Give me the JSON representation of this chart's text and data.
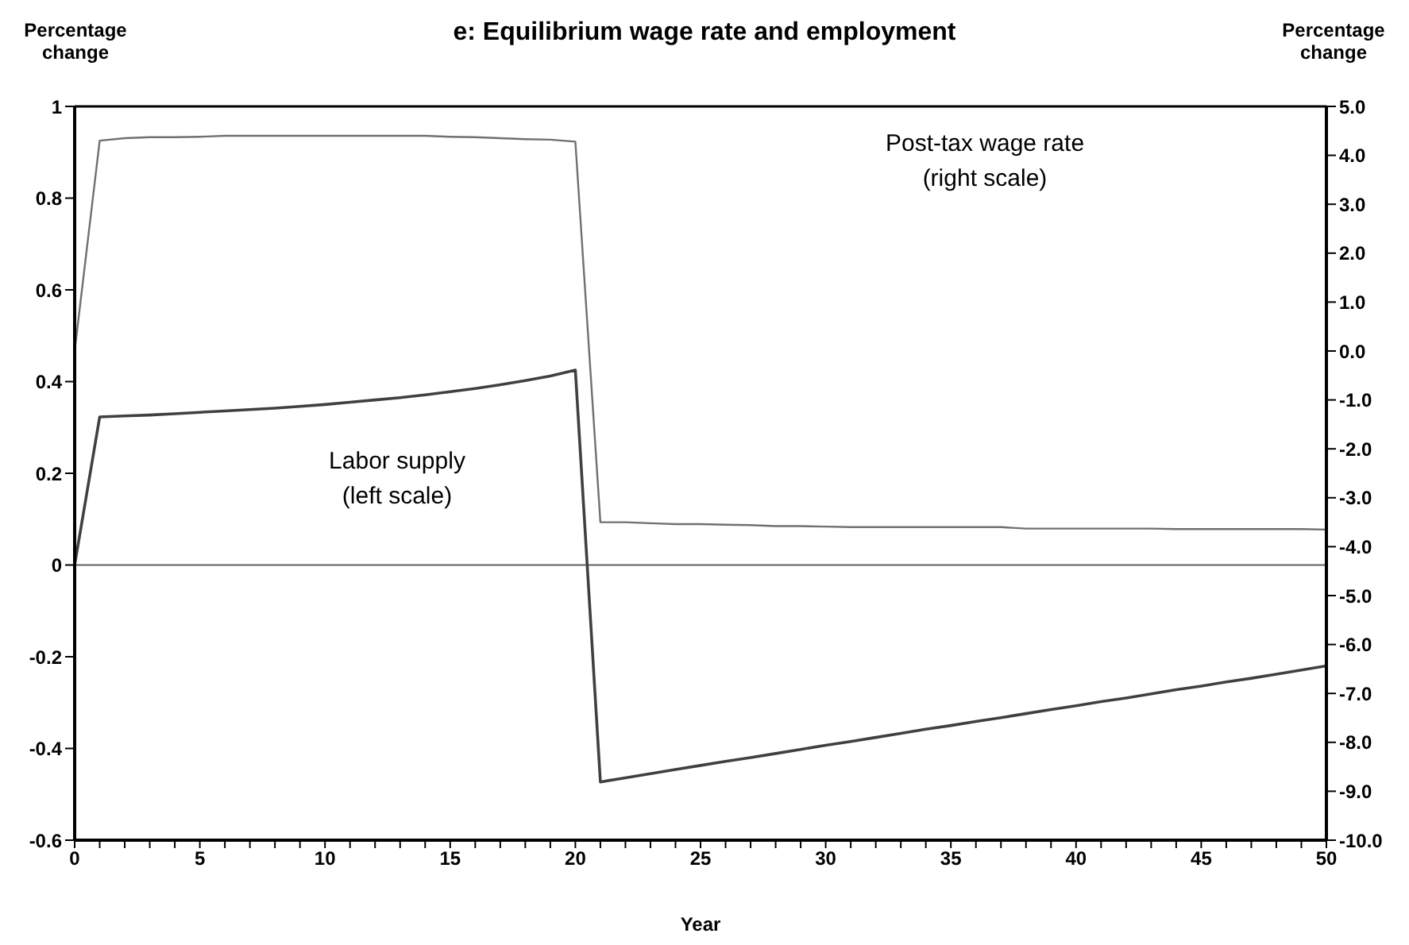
{
  "chart_data": {
    "type": "line",
    "title": "e: Equilibrium wage rate and employment",
    "xlabel": "Year",
    "ylabel": "Percentage change",
    "y2label": "Percentage change",
    "annotations": [
      "Post-tax wage rate\n(right scale)",
      "Labor supply\n(left scale)"
    ],
    "x": [
      0,
      1,
      2,
      3,
      4,
      5,
      6,
      7,
      8,
      9,
      10,
      11,
      12,
      13,
      14,
      15,
      16,
      17,
      18,
      19,
      20,
      21,
      22,
      23,
      24,
      25,
      26,
      27,
      28,
      29,
      30,
      31,
      32,
      33,
      34,
      35,
      36,
      37,
      38,
      39,
      40,
      41,
      42,
      43,
      44,
      45,
      46,
      47,
      48,
      49,
      50
    ],
    "series": [
      {
        "color": "#404040",
        "values": [
          0,
          0.323,
          0.325,
          0.327,
          0.33,
          0.333,
          0.336,
          0.339,
          0.342,
          0.346,
          0.35,
          0.355,
          0.36,
          0.365,
          0.371,
          0.378,
          0.385,
          0.393,
          0.402,
          0.412,
          0.425,
          -0.473,
          -0.464,
          -0.455,
          -0.446,
          -0.437,
          -0.428,
          -0.42,
          -0.411,
          -0.402,
          -0.393,
          -0.385,
          -0.376,
          -0.367,
          -0.358,
          -0.35,
          -0.341,
          -0.333,
          -0.324,
          -0.315,
          -0.307,
          -0.298,
          -0.29,
          -0.281,
          -0.272,
          -0.264,
          -0.255,
          -0.247,
          -0.238,
          -0.229,
          -0.22
        ]
      },
      {
        "color": "#707070",
        "axis": "y2",
        "values": [
          0,
          4.3,
          4.35,
          4.37,
          4.37,
          4.38,
          4.4,
          4.4,
          4.4,
          4.4,
          4.4,
          4.4,
          4.4,
          4.4,
          4.4,
          4.38,
          4.37,
          4.35,
          4.33,
          4.32,
          4.28,
          -3.5,
          -3.5,
          -3.52,
          -3.54,
          -3.54,
          -3.55,
          -3.56,
          -3.58,
          -3.58,
          -3.59,
          -3.6,
          -3.6,
          -3.6,
          -3.6,
          -3.6,
          -3.6,
          -3.6,
          -3.63,
          -3.63,
          -3.63,
          -3.63,
          -3.63,
          -3.63,
          -3.64,
          -3.64,
          -3.64,
          -3.64,
          -3.64,
          -3.64,
          -3.65
        ]
      }
    ],
    "xlim": [
      0,
      50
    ],
    "xticks": [
      0,
      {
        "value": 1,
        "label": null
      },
      {
        "value": 2,
        "label": null
      },
      {
        "value": 3,
        "label": null
      },
      {
        "value": 4,
        "label": null
      },
      5,
      {
        "value": 6,
        "label": null
      },
      {
        "value": 7,
        "label": null
      },
      {
        "value": 8,
        "label": null
      },
      {
        "value": 9,
        "label": null
      },
      10,
      {
        "value": 11,
        "label": null
      },
      {
        "value": 12,
        "label": null
      },
      {
        "value": 13,
        "label": null
      },
      {
        "value": 14,
        "label": null
      },
      15,
      {
        "value": 16,
        "label": null
      },
      {
        "value": 17,
        "label": null
      },
      {
        "value": 18,
        "label": null
      },
      {
        "value": 19,
        "label": null
      },
      20,
      {
        "value": 21,
        "label": null
      },
      {
        "value": 22,
        "label": null
      },
      {
        "value": 23,
        "label": null
      },
      {
        "value": 24,
        "label": null
      },
      25,
      {
        "value": 26,
        "label": null
      },
      {
        "value": 27,
        "label": null
      },
      {
        "value": 28,
        "label": null
      },
      {
        "value": 29,
        "label": null
      },
      30,
      {
        "value": 31,
        "label": null
      },
      {
        "value": 32,
        "label": null
      },
      {
        "value": 33,
        "label": null
      },
      {
        "value": 34,
        "label": null
      },
      35,
      {
        "value": 36,
        "label": null
      },
      {
        "value": 37,
        "label": null
      },
      {
        "value": 38,
        "label": null
      },
      {
        "value": 39,
        "label": null
      },
      40,
      {
        "value": 41,
        "label": null
      },
      {
        "value": 42,
        "label": null
      },
      {
        "value": 43,
        "label": null
      },
      {
        "value": 44,
        "label": null
      },
      45,
      {
        "value": 46,
        "label": null
      },
      {
        "value": 47,
        "label": null
      },
      {
        "value": 48,
        "label": null
      },
      {
        "value": 49,
        "label": null
      },
      50
    ],
    "ylim": [
      -0.6,
      1
    ],
    "yticks": [
      -0.6,
      -0.4,
      -0.2,
      0,
      0.2,
      0.4,
      0.6,
      0.8,
      1
    ],
    "y2lim": [
      -10,
      5
    ],
    "y2ticks": [
      {
        "value": -10,
        "label": "-10.0"
      },
      {
        "value": -9,
        "label": "-9.0"
      },
      {
        "value": -8,
        "label": "-8.0"
      },
      {
        "value": -7,
        "label": "-7.0"
      },
      {
        "value": -6,
        "label": "-6.0"
      },
      {
        "value": -5,
        "label": "-5.0"
      },
      {
        "value": -4,
        "label": "-4.0"
      },
      {
        "value": -3,
        "label": "-3.0"
      },
      {
        "value": -2,
        "label": "-2.0"
      },
      {
        "value": -1,
        "label": "-1.0"
      },
      {
        "value": 0,
        "label": "0.0"
      },
      {
        "value": 1,
        "label": "1.0"
      },
      {
        "value": 2,
        "label": "2.0"
      },
      {
        "value": 3,
        "label": "3.0"
      },
      {
        "value": 4,
        "label": "4.0"
      },
      {
        "value": 5,
        "label": "5.0"
      }
    ],
    "ref_lines": [
      {
        "axis": "y",
        "value": 0,
        "color": "#606060"
      }
    ],
    "grid": false,
    "marker": "none",
    "line_style": "solid"
  }
}
